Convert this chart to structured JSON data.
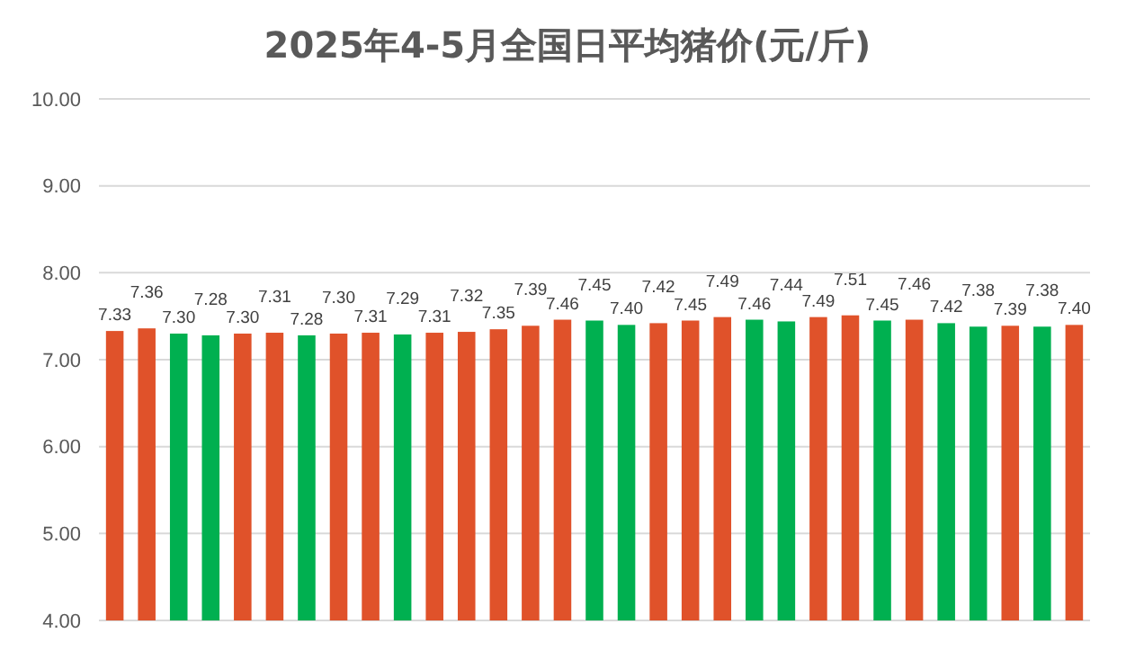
{
  "chart_data": {
    "type": "bar",
    "title": "2025年4-5月全国日平均猪价(元/斤)",
    "categories": [
      null,
      null,
      null,
      null,
      null,
      null,
      null,
      null,
      null,
      null,
      null,
      null,
      null,
      null,
      null,
      null,
      null,
      null,
      null,
      null,
      null,
      null,
      null,
      null,
      null,
      null,
      null,
      null,
      null,
      null,
      null
    ],
    "values": [
      7.33,
      7.36,
      7.3,
      7.28,
      7.3,
      7.31,
      7.28,
      7.3,
      7.31,
      7.29,
      7.31,
      7.32,
      7.35,
      7.39,
      7.46,
      7.45,
      7.4,
      7.42,
      7.45,
      7.49,
      7.46,
      7.44,
      7.49,
      7.51,
      7.45,
      7.46,
      7.42,
      7.38,
      7.39,
      7.38,
      7.4
    ],
    "colors": [
      "#e0522a",
      "#e0522a",
      "#00b050",
      "#00b050",
      "#e0522a",
      "#e0522a",
      "#00b050",
      "#e0522a",
      "#e0522a",
      "#00b050",
      "#e0522a",
      "#e0522a",
      "#e0522a",
      "#e0522a",
      "#e0522a",
      "#00b050",
      "#00b050",
      "#e0522a",
      "#e0522a",
      "#e0522a",
      "#00b050",
      "#00b050",
      "#e0522a",
      "#e0522a",
      "#00b050",
      "#e0522a",
      "#00b050",
      "#00b050",
      "#e0522a",
      "#00b050",
      "#e0522a"
    ],
    "ylim": [
      4,
      10
    ],
    "yticks": [
      {
        "value": 4,
        "label": "4.00"
      },
      {
        "value": 5,
        "label": "5.00"
      },
      {
        "value": 6,
        "label": "6.00"
      },
      {
        "value": 7,
        "label": "7.00"
      },
      {
        "value": 8,
        "label": "8.00"
      },
      {
        "value": 9,
        "label": "9.00"
      },
      {
        "value": 10,
        "label": "10.00"
      }
    ],
    "value_labels": [
      "7.33",
      "7.36",
      "7.30",
      "7.28",
      "7.30",
      "7.31",
      "7.28",
      "7.30",
      "7.31",
      "7.29",
      "7.31",
      "7.32",
      "7.35",
      "7.39",
      "7.46",
      "7.45",
      "7.40",
      "7.42",
      "7.45",
      "7.49",
      "7.46",
      "7.44",
      "7.49",
      "7.51",
      "7.45",
      "7.46",
      "7.42",
      "7.38",
      "7.39",
      "7.38",
      "7.40"
    ],
    "grid": "y"
  }
}
